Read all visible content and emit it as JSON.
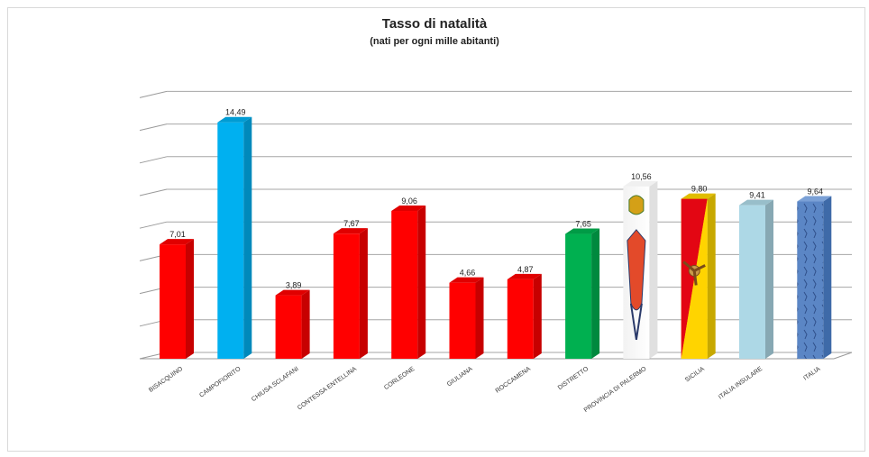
{
  "chart_data": {
    "type": "bar",
    "title": "Tasso di natalità",
    "subtitle": "(nati per ogni mille abitanti)",
    "xlabel": "",
    "ylabel": "",
    "categories": [
      "BISACQUINO",
      "CAMPOFIORITO",
      "CHIUSA SCLAFANI",
      "CONTESSA ENTELLINA",
      "CORLEONE",
      "GIULIANA",
      "ROCCAMENA",
      "DISTRETTO",
      "PROVINCIA DI PALERMO",
      "SICILIA",
      "ITALIA INSULARE",
      "ITALIA"
    ],
    "values": [
      7.01,
      14.49,
      3.89,
      7.67,
      9.06,
      4.66,
      4.87,
      7.65,
      10.56,
      9.8,
      9.41,
      9.64
    ],
    "value_labels": [
      "7,01",
      "14,49",
      "3,89",
      "7,67",
      "9,06",
      "4,66",
      "4,87",
      "7,65",
      "10,56",
      "9,80",
      "9,41",
      "9,64"
    ],
    "colors": [
      "#ff0000",
      "#00b0f0",
      "#ff0000",
      "#ff0000",
      "#ff0000",
      "#ff0000",
      "#ff0000",
      "#00b050",
      "#ffffff",
      "#ffd700",
      "#add8e6",
      "#4f81bd"
    ],
    "pictures": {
      "PROVINCIA DI PALERMO": "provincia-coat-of-arms",
      "SICILIA": "sicily-flag-trinacria",
      "ITALIA": "italy-map-pattern"
    },
    "ylim": [
      0,
      16
    ],
    "grid": true,
    "legend": "none"
  }
}
